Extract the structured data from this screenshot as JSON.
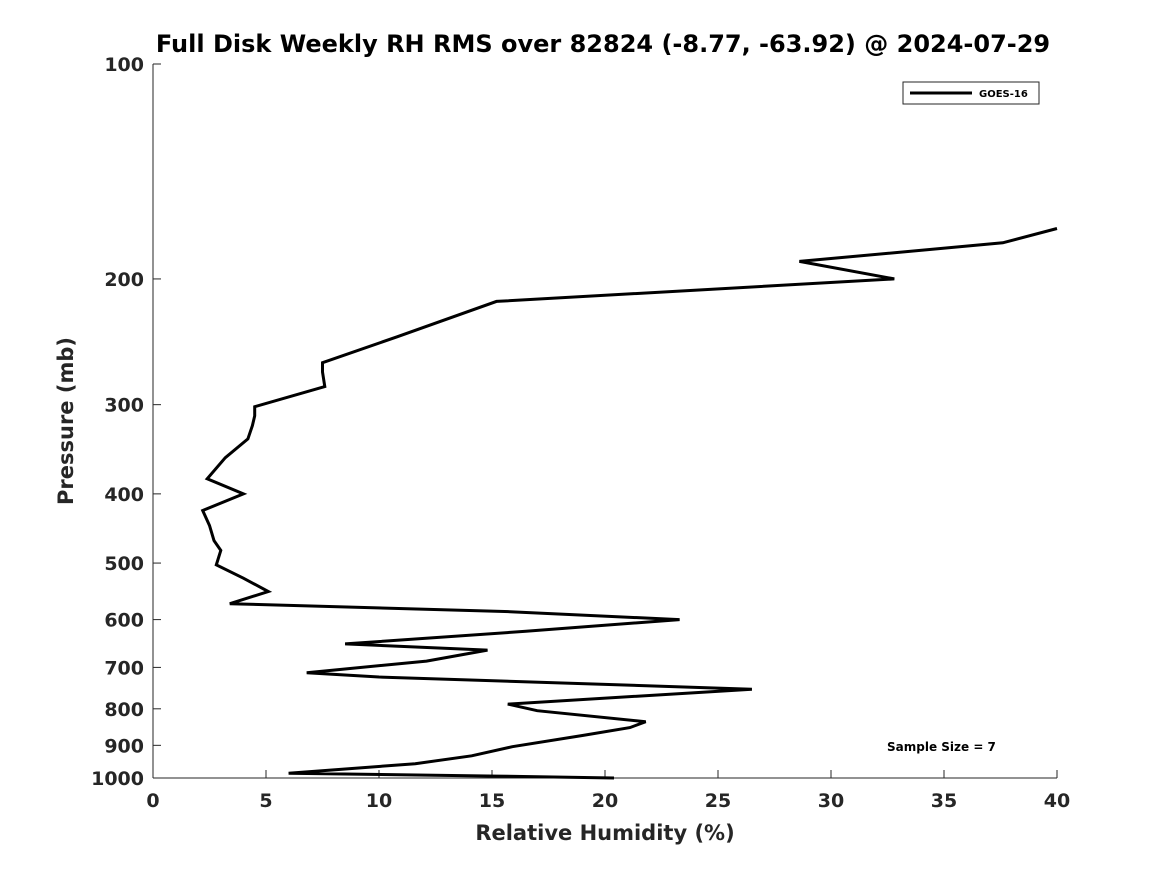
{
  "chart_data": {
    "type": "line",
    "title": "Full Disk Weekly RH RMS over 82824 (-8.77, -63.92) @ 2024-07-29",
    "xlabel": "Relative Humidity (%)",
    "ylabel": "Pressure (mb)",
    "xlim": [
      0,
      40
    ],
    "ylim": [
      100,
      1000
    ],
    "yscale": "log",
    "y_reversed": true,
    "x_ticks": [
      0,
      5,
      10,
      15,
      20,
      25,
      30,
      35,
      40
    ],
    "y_ticks": [
      100,
      200,
      300,
      400,
      500,
      600,
      700,
      800,
      900,
      1000
    ],
    "legend": {
      "placement": "top-right"
    },
    "annotation": "Sample Size = 7",
    "grid": false,
    "series": [
      {
        "name": "GOES-16",
        "color": "#000000",
        "x": [
          40.0,
          37.6,
          28.6,
          32.8,
          15.2,
          10.8,
          7.5,
          7.5,
          7.6,
          4.5,
          4.5,
          4.4,
          4.2,
          3.2,
          2.4,
          4.0,
          2.2,
          2.5,
          2.7,
          3.0,
          2.8,
          4.0,
          5.1,
          3.4,
          15.8,
          23.3,
          16.5,
          8.5,
          14.8,
          12.1,
          6.8,
          10.0,
          26.5,
          15.7,
          17.0,
          21.8,
          21.1,
          19.0,
          15.9,
          14.1,
          11.6,
          6.0,
          15.2,
          20.4
        ],
        "y": [
          170,
          178,
          189,
          200,
          215,
          241,
          262,
          270,
          283,
          302,
          311,
          321,
          335,
          356,
          381,
          400,
          422,
          443,
          465,
          480,
          503,
          525,
          548,
          570,
          585,
          600,
          623,
          649,
          662,
          686,
          712,
          722,
          751,
          788,
          805,
          834,
          850,
          872,
          904,
          931,
          955,
          985,
          994,
          1000
        ]
      }
    ]
  }
}
